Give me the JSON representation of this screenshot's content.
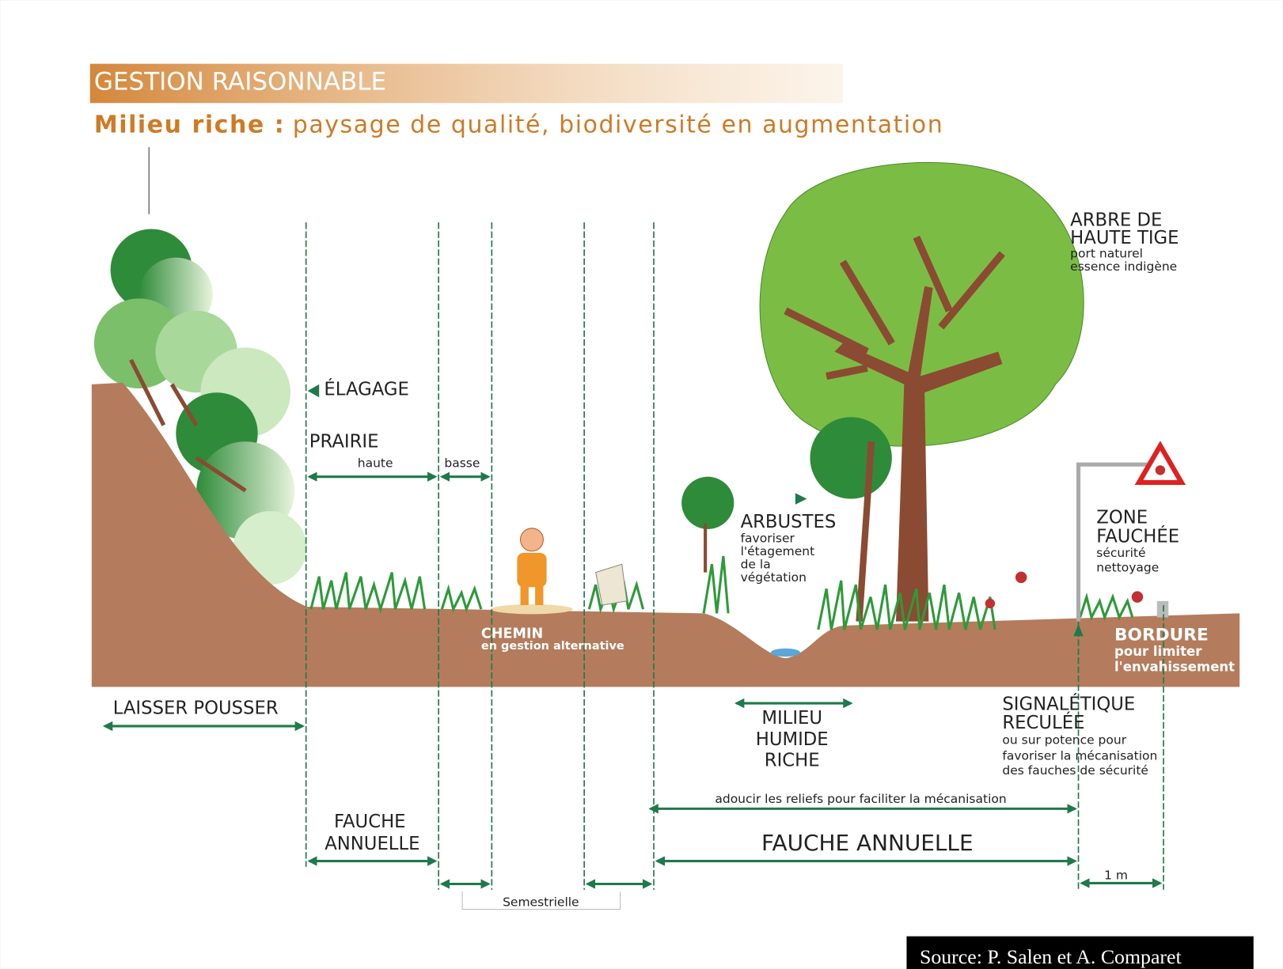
{
  "header": {
    "title": "GESTION RAISONNABLE",
    "subtitle_bold": "Milieu riche :",
    "subtitle_rest": "paysage de qualité, biodiversité en augmentation"
  },
  "labels": {
    "elagage": "ÉLAGAGE",
    "prairie": "PRAIRIE",
    "haute": "haute",
    "basse": "basse",
    "chemin": "CHEMIN",
    "chemin_sub": "en gestion alternative",
    "arbustes": "ARBUSTES",
    "arbustes_sub": [
      "favoriser",
      "l'étagement",
      "de la",
      "végétation"
    ],
    "arbre": [
      "ARBRE DE",
      "HAUTE TIGE"
    ],
    "arbre_sub": [
      "port naturel",
      "essence indigène"
    ],
    "zone": [
      "ZONE",
      "FAUCHÉE"
    ],
    "zone_sub": [
      "sécurité",
      "nettoyage"
    ],
    "bordure": "BORDURE",
    "bordure_sub": [
      "pour limiter",
      "l'envahissement"
    ],
    "laisser": "LAISSER POUSSER",
    "milieu": [
      "MILIEU",
      "HUMIDE",
      "RICHE"
    ],
    "signaletique": [
      "SIGNALÉTIQUE",
      "RECULÉE"
    ],
    "signaletique_sub": [
      "ou sur potence pour",
      "favoriser la mécanisation",
      "des fauches de sécurité"
    ],
    "adoucir": "adoucir les reliefs pour faciliter la mécanisation",
    "fauche_left": [
      "FAUCHE",
      "ANNUELLE"
    ],
    "fauche_right": "FAUCHE ANNUELLE",
    "un_metre": "1 m",
    "semestrielle": "Semestrielle"
  },
  "source": "Source: P. Salen et A. Comparet"
}
